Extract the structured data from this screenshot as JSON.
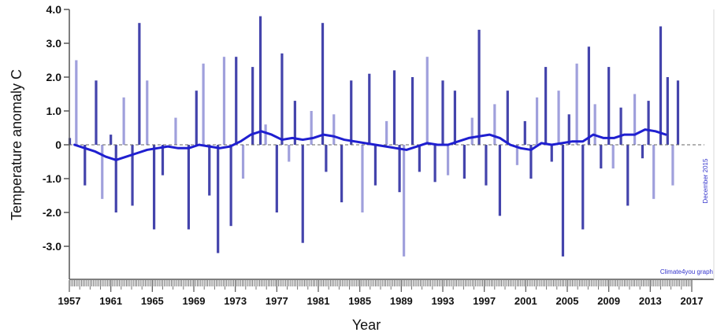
{
  "chart_data": {
    "type": "bar",
    "title": "",
    "xlabel": "Year",
    "ylabel": "Temperature anomaly  C",
    "xlim": [
      1957,
      2017
    ],
    "ylim": [
      -4.0,
      4.0
    ],
    "x_ticks": [
      1957,
      1961,
      1965,
      1969,
      1973,
      1977,
      1981,
      1985,
      1989,
      1993,
      1997,
      2001,
      2005,
      2009,
      2013,
      2017
    ],
    "x_tick_labels": [
      "1957",
      "1961",
      "1965",
      "1969",
      "1973",
      "1977",
      "1981",
      "1985",
      "1989",
      "1993",
      "1997",
      "2001",
      "2005",
      "2009",
      "2013",
      "2017"
    ],
    "y_ticks": [
      4.0,
      3.0,
      2.0,
      1.0,
      0,
      -1.0,
      -2.0,
      -3.0
    ],
    "y_tick_labels": [
      "4.0",
      "3.0",
      "2.0",
      "1.0",
      "0",
      "-1.0",
      "-2.0",
      "-3.0"
    ],
    "grid": false,
    "annotations": [
      "December 2015",
      "Climate4you graph"
    ],
    "colors": {
      "monthly": "#3a3aa8",
      "monthly_light": "#8f8fd6",
      "running_mean": "#1f1fd0",
      "zero_line": "#666666",
      "axis": "#555555"
    },
    "series": [
      {
        "type": "bar",
        "x": [
          1957.04,
          1957.67,
          1958.5,
          1959.58,
          1960.17,
          1961.0,
          1961.5,
          1962.25,
          1963.08,
          1963.75,
          1964.5,
          1965.17,
          1966.0,
          1967.25,
          1968.5,
          1969.25,
          1969.92,
          1970.5,
          1971.33,
          1971.92,
          1972.58,
          1973.08,
          1973.75,
          1974.67,
          1975.42,
          1975.92,
          1977.0,
          1977.5,
          1978.17,
          1978.75,
          1979.5,
          1980.33,
          1981.42,
          1981.75,
          1982.5,
          1983.25,
          1984.17,
          1985.25,
          1985.92,
          1986.5,
          1987.58,
          1988.33,
          1988.83,
          1989.25,
          1990.08,
          1990.75,
          1991.5,
          1992.25,
          1993.0,
          1993.5,
          1994.17,
          1995.08,
          1995.83,
          1996.5,
          1997.17,
          1998.0,
          1998.5,
          1999.25,
          2000.17,
          2000.92,
          2001.5,
          2002.08,
          2002.92,
          2003.5,
          2004.17,
          2004.58,
          2005.17,
          2005.92,
          2006.5,
          2007.08,
          2007.67,
          2008.25,
          2009.0,
          2009.42,
          2010.17,
          2010.83,
          2011.5,
          2012.25,
          2012.83,
          2013.33,
          2014.0,
          2014.67,
          2015.17,
          2015.67
        ],
        "values": [
          0.2,
          2.5,
          -1.2,
          1.9,
          -1.6,
          0.3,
          -2.0,
          1.4,
          -1.8,
          3.6,
          1.9,
          -2.5,
          -0.9,
          0.8,
          -2.5,
          1.6,
          2.4,
          -1.5,
          -3.2,
          2.6,
          -2.4,
          2.6,
          -1.0,
          2.3,
          3.8,
          0.6,
          -2.0,
          2.7,
          -0.5,
          1.3,
          -2.9,
          1.0,
          3.6,
          -0.8,
          0.9,
          -1.7,
          1.9,
          -2.0,
          2.1,
          -1.2,
          0.7,
          2.2,
          -1.4,
          -3.3,
          2.0,
          -0.8,
          2.6,
          -1.1,
          1.9,
          -0.9,
          1.6,
          -1.0,
          0.8,
          3.4,
          -1.2,
          1.2,
          -2.1,
          1.6,
          -0.6,
          0.7,
          -1.0,
          1.4,
          2.3,
          -0.5,
          1.6,
          -3.3,
          0.9,
          2.4,
          -2.5,
          2.9,
          1.2,
          -0.7,
          2.3,
          -0.7,
          1.1,
          -1.8,
          1.5,
          -0.4,
          1.3,
          -1.6,
          3.5,
          2.0,
          -1.2,
          1.9
        ]
      },
      {
        "type": "line",
        "x": [
          1957.5,
          1958.5,
          1959.5,
          1960.5,
          1961.5,
          1962.5,
          1963.5,
          1964.5,
          1965.5,
          1966.5,
          1967.5,
          1968.5,
          1969.5,
          1970.5,
          1971.5,
          1972.5,
          1973.5,
          1974.5,
          1975.5,
          1976.5,
          1977.5,
          1978.5,
          1979.5,
          1980.5,
          1981.5,
          1982.5,
          1983.5,
          1984.5,
          1985.5,
          1986.5,
          1987.5,
          1988.5,
          1989.5,
          1990.5,
          1991.5,
          1992.5,
          1993.5,
          1994.5,
          1995.5,
          1996.5,
          1997.5,
          1998.5,
          1999.5,
          2000.5,
          2001.5,
          2002.5,
          2003.5,
          2004.5,
          2005.5,
          2006.5,
          2007.5,
          2008.5,
          2009.5,
          2010.5,
          2011.5,
          2012.5,
          2013.5,
          2014.5
        ],
        "values": [
          0.0,
          -0.1,
          -0.2,
          -0.35,
          -0.45,
          -0.35,
          -0.25,
          -0.15,
          -0.1,
          -0.05,
          -0.1,
          -0.1,
          0.0,
          -0.05,
          -0.1,
          -0.05,
          0.1,
          0.3,
          0.4,
          0.3,
          0.15,
          0.2,
          0.15,
          0.2,
          0.3,
          0.25,
          0.15,
          0.1,
          0.05,
          0.0,
          -0.05,
          -0.1,
          -0.15,
          -0.05,
          0.05,
          0.0,
          0.0,
          0.1,
          0.2,
          0.25,
          0.3,
          0.2,
          0.0,
          -0.1,
          -0.15,
          0.05,
          0.0,
          0.05,
          0.1,
          0.1,
          0.3,
          0.2,
          0.2,
          0.3,
          0.3,
          0.45,
          0.4,
          0.3
        ]
      }
    ]
  }
}
